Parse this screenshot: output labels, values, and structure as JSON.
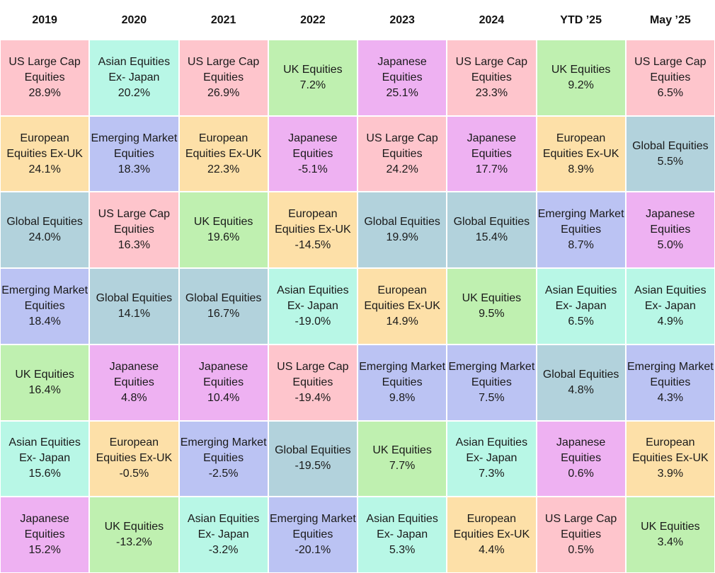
{
  "table": {
    "columns": [
      {
        "header": "2019",
        "cells": [
          {
            "lines": [
              "US Large Cap",
              "Equities"
            ],
            "value": "28.9%",
            "color": "#fec5cc"
          },
          {
            "lines": [
              "European",
              "Equities Ex-UK"
            ],
            "value": "24.1%",
            "color": "#fde0a8"
          },
          {
            "lines": [
              "Global Equities"
            ],
            "value": "24.0%",
            "color": "#b2d2dc"
          },
          {
            "lines": [
              "Emerging Market",
              "Equities"
            ],
            "value": "18.4%",
            "color": "#bbc3f3"
          },
          {
            "lines": [
              "UK Equities"
            ],
            "value": "16.4%",
            "color": "#bff0b0"
          },
          {
            "lines": [
              "Asian Equities",
              "Ex- Japan"
            ],
            "value": "15.6%",
            "color": "#b8f7e6"
          },
          {
            "lines": [
              "Japanese",
              "Equities"
            ],
            "value": "15.2%",
            "color": "#eeb1f2"
          }
        ]
      },
      {
        "header": "2020",
        "cells": [
          {
            "lines": [
              "Asian Equities",
              "Ex- Japan"
            ],
            "value": "20.2%",
            "color": "#b8f7e6"
          },
          {
            "lines": [
              "Emerging Market",
              "Equities"
            ],
            "value": "18.3%",
            "color": "#bbc3f3"
          },
          {
            "lines": [
              "US Large Cap",
              "Equities"
            ],
            "value": "16.3%",
            "color": "#fec5cc"
          },
          {
            "lines": [
              "Global Equities"
            ],
            "value": "14.1%",
            "color": "#b2d2dc"
          },
          {
            "lines": [
              "Japanese",
              "Equities"
            ],
            "value": "4.8%",
            "color": "#eeb1f2"
          },
          {
            "lines": [
              "European",
              "Equities Ex-UK"
            ],
            "value": "-0.5%",
            "color": "#fde0a8"
          },
          {
            "lines": [
              "UK Equities"
            ],
            "value": "-13.2%",
            "color": "#bff0b0"
          }
        ]
      },
      {
        "header": "2021",
        "cells": [
          {
            "lines": [
              "US Large Cap",
              "Equities"
            ],
            "value": "26.9%",
            "color": "#fec5cc"
          },
          {
            "lines": [
              "European",
              "Equities Ex-UK"
            ],
            "value": "22.3%",
            "color": "#fde0a8"
          },
          {
            "lines": [
              "UK Equities"
            ],
            "value": "19.6%",
            "color": "#bff0b0"
          },
          {
            "lines": [
              "Global Equities"
            ],
            "value": "16.7%",
            "color": "#b2d2dc"
          },
          {
            "lines": [
              "Japanese",
              "Equities"
            ],
            "value": "10.4%",
            "color": "#eeb1f2"
          },
          {
            "lines": [
              "Emerging Market",
              "Equities"
            ],
            "value": "-2.5%",
            "color": "#bbc3f3"
          },
          {
            "lines": [
              "Asian Equities",
              "Ex- Japan"
            ],
            "value": "-3.2%",
            "color": "#b8f7e6"
          }
        ]
      },
      {
        "header": "2022",
        "cells": [
          {
            "lines": [
              "UK Equities"
            ],
            "value": "7.2%",
            "color": "#bff0b0"
          },
          {
            "lines": [
              "Japanese",
              "Equities"
            ],
            "value": "-5.1%",
            "color": "#eeb1f2"
          },
          {
            "lines": [
              "European",
              "Equities Ex-UK"
            ],
            "value": "-14.5%",
            "color": "#fde0a8"
          },
          {
            "lines": [
              "Asian Equities",
              "Ex- Japan"
            ],
            "value": "-19.0%",
            "color": "#b8f7e6"
          },
          {
            "lines": [
              "US Large Cap",
              "Equities"
            ],
            "value": "-19.4%",
            "color": "#fec5cc"
          },
          {
            "lines": [
              "Global Equities"
            ],
            "value": "-19.5%",
            "color": "#b2d2dc"
          },
          {
            "lines": [
              "Emerging Market",
              "Equities"
            ],
            "value": "-20.1%",
            "color": "#bbc3f3"
          }
        ]
      },
      {
        "header": "2023",
        "cells": [
          {
            "lines": [
              "Japanese",
              "Equities"
            ],
            "value": "25.1%",
            "color": "#eeb1f2"
          },
          {
            "lines": [
              "US Large Cap",
              "Equities"
            ],
            "value": "24.2%",
            "color": "#fec5cc"
          },
          {
            "lines": [
              "Global Equities"
            ],
            "value": "19.9%",
            "color": "#b2d2dc"
          },
          {
            "lines": [
              "European",
              "Equities Ex-UK"
            ],
            "value": "14.9%",
            "color": "#fde0a8"
          },
          {
            "lines": [
              "Emerging Market",
              "Equities"
            ],
            "value": "9.8%",
            "color": "#bbc3f3"
          },
          {
            "lines": [
              "UK Equities"
            ],
            "value": "7.7%",
            "color": "#bff0b0"
          },
          {
            "lines": [
              "Asian Equities",
              "Ex- Japan"
            ],
            "value": "5.3%",
            "color": "#b8f7e6"
          }
        ]
      },
      {
        "header": "2024",
        "cells": [
          {
            "lines": [
              "US Large Cap",
              "Equities"
            ],
            "value": "23.3%",
            "color": "#fec5cc"
          },
          {
            "lines": [
              "Japanese",
              "Equities"
            ],
            "value": "17.7%",
            "color": "#eeb1f2"
          },
          {
            "lines": [
              "Global Equities"
            ],
            "value": "15.4%",
            "color": "#b2d2dc"
          },
          {
            "lines": [
              "UK Equities"
            ],
            "value": "9.5%",
            "color": "#bff0b0"
          },
          {
            "lines": [
              "Emerging Market",
              "Equities"
            ],
            "value": "7.5%",
            "color": "#bbc3f3"
          },
          {
            "lines": [
              "Asian Equities",
              "Ex- Japan"
            ],
            "value": "7.3%",
            "color": "#b8f7e6"
          },
          {
            "lines": [
              "European",
              "Equities Ex-UK"
            ],
            "value": "4.4%",
            "color": "#fde0a8"
          }
        ]
      },
      {
        "header": "YTD ’25",
        "cells": [
          {
            "lines": [
              "UK Equities"
            ],
            "value": "9.2%",
            "color": "#bff0b0"
          },
          {
            "lines": [
              "European",
              "Equities Ex-UK"
            ],
            "value": "8.9%",
            "color": "#fde0a8"
          },
          {
            "lines": [
              "Emerging Market",
              "Equities"
            ],
            "value": "8.7%",
            "color": "#bbc3f3"
          },
          {
            "lines": [
              "Asian Equities",
              "Ex- Japan"
            ],
            "value": "6.5%",
            "color": "#b8f7e6"
          },
          {
            "lines": [
              "Global Equities"
            ],
            "value": "4.8%",
            "color": "#b2d2dc"
          },
          {
            "lines": [
              "Japanese",
              "Equities"
            ],
            "value": "0.6%",
            "color": "#eeb1f2"
          },
          {
            "lines": [
              "US Large Cap",
              "Equities"
            ],
            "value": "0.5%",
            "color": "#fec5cc"
          }
        ]
      },
      {
        "header": "May ’25",
        "cells": [
          {
            "lines": [
              "US Large Cap",
              "Equities"
            ],
            "value": "6.5%",
            "color": "#fec5cc"
          },
          {
            "lines": [
              "Global Equities"
            ],
            "value": "5.5%",
            "color": "#b2d2dc"
          },
          {
            "lines": [
              "Japanese",
              "Equities"
            ],
            "value": "5.0%",
            "color": "#eeb1f2"
          },
          {
            "lines": [
              "Asian Equities",
              "Ex- Japan"
            ],
            "value": "4.9%",
            "color": "#b8f7e6"
          },
          {
            "lines": [
              "Emerging Market",
              "Equities"
            ],
            "value": "4.3%",
            "color": "#bbc3f3"
          },
          {
            "lines": [
              "European",
              "Equities Ex-UK"
            ],
            "value": "3.9%",
            "color": "#fde0a8"
          },
          {
            "lines": [
              "UK Equities"
            ],
            "value": "3.4%",
            "color": "#bff0b0"
          }
        ]
      }
    ]
  }
}
